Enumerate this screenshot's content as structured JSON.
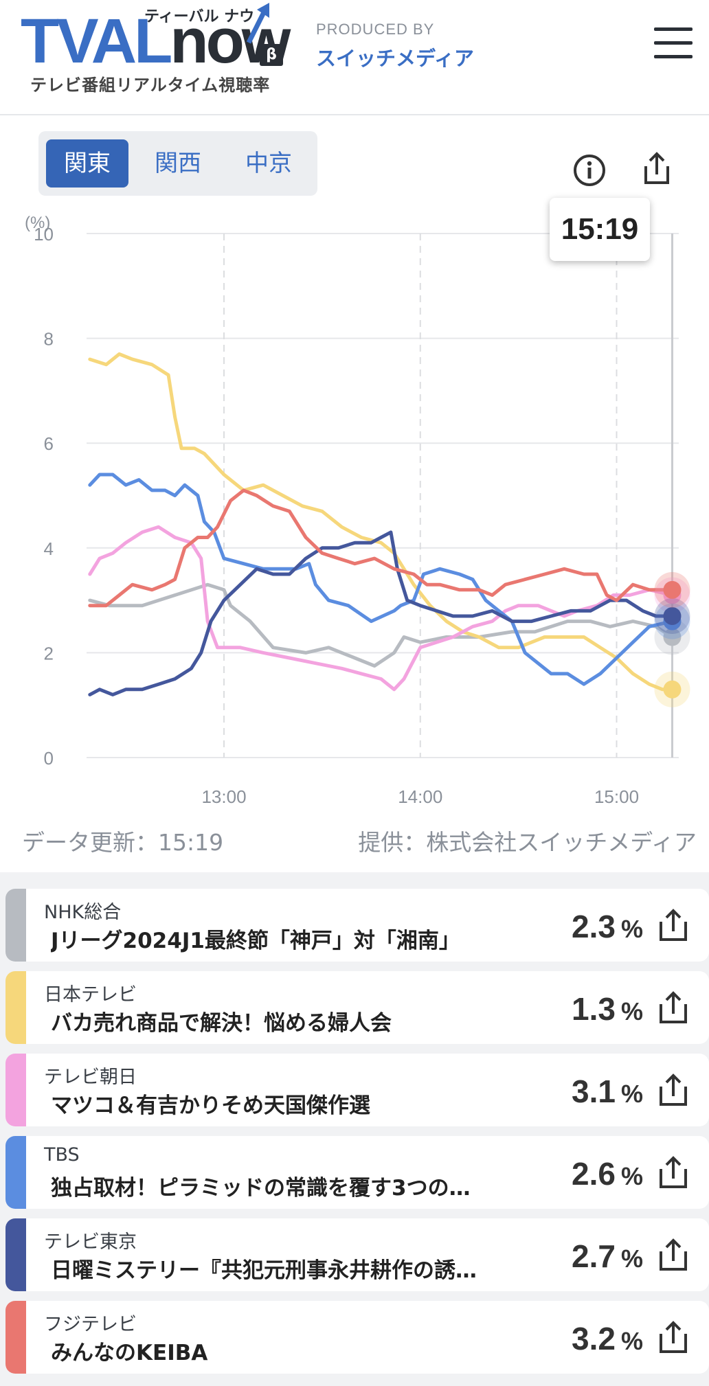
{
  "header": {
    "logo_main": "TVAL",
    "logo_now": "now",
    "logo_kana": "ティーバル ナウ",
    "logo_beta": "β",
    "logo_sub": "テレビ番組リアルタイム視聴率",
    "produced_by": "PRODUCED BY",
    "producer": "スイッチメディア"
  },
  "region_tabs": [
    {
      "label": "関東",
      "active": true
    },
    {
      "label": "関西",
      "active": false
    },
    {
      "label": "中京",
      "active": false
    }
  ],
  "icons": {
    "info": "info-icon",
    "share": "share-icon",
    "menu": "hamburger-menu-icon"
  },
  "current_time": "15:19",
  "footer": {
    "updated": "データ更新：15:19",
    "provider": "提供：株式会社スイッチメディア"
  },
  "chart_data": {
    "type": "line",
    "y_unit": "(%)",
    "ylim": [
      0,
      10
    ],
    "y_ticks": [
      "0",
      "2",
      "4",
      "6",
      "8",
      "10"
    ],
    "x_ticks": [
      "13:00",
      "14:00",
      "15:00"
    ],
    "x_tick_values": [
      780,
      840,
      900
    ],
    "xlim": [
      738,
      919
    ],
    "grid": true,
    "series": [
      {
        "color": "#b7bbc1",
        "points": [
          [
            739,
            3.0
          ],
          [
            745,
            2.9
          ],
          [
            755,
            2.9
          ],
          [
            765,
            3.1
          ],
          [
            775,
            3.3
          ],
          [
            780,
            3.2
          ],
          [
            782,
            2.9
          ],
          [
            788,
            2.6
          ],
          [
            795,
            2.1
          ],
          [
            805,
            2.0
          ],
          [
            812,
            2.1
          ],
          [
            820,
            1.9
          ],
          [
            826,
            1.75
          ],
          [
            832,
            2.0
          ],
          [
            835,
            2.3
          ],
          [
            840,
            2.2
          ],
          [
            848,
            2.3
          ],
          [
            858,
            2.3
          ],
          [
            868,
            2.4
          ],
          [
            875,
            2.4
          ],
          [
            885,
            2.6
          ],
          [
            892,
            2.6
          ],
          [
            898,
            2.5
          ],
          [
            905,
            2.6
          ],
          [
            912,
            2.5
          ],
          [
            917,
            2.3
          ]
        ]
      },
      {
        "color": "#f6d77b",
        "points": [
          [
            739,
            7.6
          ],
          [
            744,
            7.5
          ],
          [
            748,
            7.7
          ],
          [
            752,
            7.6
          ],
          [
            758,
            7.5
          ],
          [
            763,
            7.3
          ],
          [
            765,
            6.5
          ],
          [
            767,
            5.9
          ],
          [
            771,
            5.9
          ],
          [
            774,
            5.8
          ],
          [
            780,
            5.4
          ],
          [
            786,
            5.1
          ],
          [
            792,
            5.2
          ],
          [
            798,
            5.0
          ],
          [
            804,
            4.8
          ],
          [
            810,
            4.7
          ],
          [
            816,
            4.4
          ],
          [
            822,
            4.2
          ],
          [
            828,
            4.1
          ],
          [
            832,
            3.9
          ],
          [
            835,
            3.6
          ],
          [
            838,
            3.3
          ],
          [
            843,
            2.9
          ],
          [
            848,
            2.6
          ],
          [
            853,
            2.4
          ],
          [
            858,
            2.3
          ],
          [
            864,
            2.1
          ],
          [
            870,
            2.1
          ],
          [
            878,
            2.3
          ],
          [
            885,
            2.3
          ],
          [
            890,
            2.3
          ],
          [
            895,
            2.1
          ],
          [
            900,
            1.9
          ],
          [
            905,
            1.6
          ],
          [
            910,
            1.4
          ],
          [
            914,
            1.3
          ],
          [
            917,
            1.3
          ]
        ]
      },
      {
        "color": "#f3a3df",
        "points": [
          [
            739,
            3.5
          ],
          [
            742,
            3.8
          ],
          [
            746,
            3.9
          ],
          [
            750,
            4.1
          ],
          [
            755,
            4.3
          ],
          [
            760,
            4.4
          ],
          [
            765,
            4.2
          ],
          [
            770,
            4.1
          ],
          [
            773,
            3.8
          ],
          [
            775,
            2.6
          ],
          [
            778,
            2.1
          ],
          [
            785,
            2.1
          ],
          [
            792,
            2.0
          ],
          [
            800,
            1.9
          ],
          [
            808,
            1.8
          ],
          [
            816,
            1.7
          ],
          [
            822,
            1.6
          ],
          [
            828,
            1.5
          ],
          [
            832,
            1.3
          ],
          [
            835,
            1.5
          ],
          [
            840,
            2.1
          ],
          [
            845,
            2.2
          ],
          [
            850,
            2.3
          ],
          [
            856,
            2.5
          ],
          [
            862,
            2.6
          ],
          [
            866,
            2.8
          ],
          [
            870,
            2.9
          ],
          [
            876,
            2.9
          ],
          [
            880,
            2.8
          ],
          [
            884,
            2.7
          ],
          [
            888,
            2.8
          ],
          [
            894,
            2.9
          ],
          [
            899,
            3.1
          ],
          [
            904,
            3.1
          ],
          [
            910,
            3.2
          ],
          [
            917,
            3.1
          ]
        ]
      },
      {
        "color": "#5b8de0",
        "points": [
          [
            739,
            5.2
          ],
          [
            742,
            5.4
          ],
          [
            746,
            5.4
          ],
          [
            750,
            5.2
          ],
          [
            754,
            5.3
          ],
          [
            758,
            5.1
          ],
          [
            762,
            5.1
          ],
          [
            765,
            5.0
          ],
          [
            768,
            5.2
          ],
          [
            772,
            5.0
          ],
          [
            774,
            4.5
          ],
          [
            777,
            4.3
          ],
          [
            780,
            3.8
          ],
          [
            786,
            3.7
          ],
          [
            792,
            3.6
          ],
          [
            797,
            3.6
          ],
          [
            802,
            3.6
          ],
          [
            806,
            3.7
          ],
          [
            808,
            3.3
          ],
          [
            812,
            3.0
          ],
          [
            818,
            2.9
          ],
          [
            825,
            2.6
          ],
          [
            832,
            2.8
          ],
          [
            834,
            2.9
          ],
          [
            838,
            3.0
          ],
          [
            841,
            3.5
          ],
          [
            846,
            3.6
          ],
          [
            852,
            3.5
          ],
          [
            856,
            3.4
          ],
          [
            860,
            3.0
          ],
          [
            864,
            2.8
          ],
          [
            868,
            2.6
          ],
          [
            872,
            2.0
          ],
          [
            876,
            1.8
          ],
          [
            880,
            1.6
          ],
          [
            885,
            1.6
          ],
          [
            890,
            1.4
          ],
          [
            895,
            1.6
          ],
          [
            900,
            1.9
          ],
          [
            905,
            2.2
          ],
          [
            910,
            2.5
          ],
          [
            917,
            2.6
          ]
        ]
      },
      {
        "color": "#44579c",
        "points": [
          [
            739,
            1.2
          ],
          [
            742,
            1.3
          ],
          [
            746,
            1.2
          ],
          [
            750,
            1.3
          ],
          [
            755,
            1.3
          ],
          [
            760,
            1.4
          ],
          [
            765,
            1.5
          ],
          [
            770,
            1.7
          ],
          [
            773,
            2.0
          ],
          [
            776,
            2.6
          ],
          [
            780,
            3.0
          ],
          [
            785,
            3.3
          ],
          [
            790,
            3.6
          ],
          [
            795,
            3.5
          ],
          [
            800,
            3.5
          ],
          [
            805,
            3.8
          ],
          [
            810,
            4.0
          ],
          [
            815,
            4.0
          ],
          [
            820,
            4.1
          ],
          [
            825,
            4.1
          ],
          [
            828,
            4.2
          ],
          [
            831,
            4.3
          ],
          [
            833,
            3.6
          ],
          [
            836,
            3.0
          ],
          [
            840,
            2.9
          ],
          [
            845,
            2.8
          ],
          [
            850,
            2.7
          ],
          [
            856,
            2.7
          ],
          [
            862,
            2.8
          ],
          [
            868,
            2.6
          ],
          [
            874,
            2.6
          ],
          [
            880,
            2.7
          ],
          [
            886,
            2.8
          ],
          [
            892,
            2.8
          ],
          [
            898,
            3.0
          ],
          [
            903,
            3.0
          ],
          [
            908,
            2.8
          ],
          [
            912,
            2.7
          ],
          [
            917,
            2.7
          ]
        ]
      },
      {
        "color": "#e97770",
        "points": [
          [
            739,
            2.9
          ],
          [
            744,
            2.9
          ],
          [
            748,
            3.1
          ],
          [
            752,
            3.3
          ],
          [
            758,
            3.2
          ],
          [
            762,
            3.3
          ],
          [
            765,
            3.4
          ],
          [
            768,
            4.0
          ],
          [
            772,
            4.2
          ],
          [
            775,
            4.2
          ],
          [
            778,
            4.4
          ],
          [
            782,
            4.9
          ],
          [
            786,
            5.1
          ],
          [
            790,
            5.0
          ],
          [
            795,
            4.8
          ],
          [
            800,
            4.7
          ],
          [
            805,
            4.2
          ],
          [
            810,
            3.9
          ],
          [
            815,
            3.8
          ],
          [
            820,
            3.7
          ],
          [
            826,
            3.8
          ],
          [
            832,
            3.6
          ],
          [
            838,
            3.5
          ],
          [
            842,
            3.3
          ],
          [
            846,
            3.3
          ],
          [
            852,
            3.2
          ],
          [
            858,
            3.2
          ],
          [
            862,
            3.1
          ],
          [
            866,
            3.3
          ],
          [
            872,
            3.4
          ],
          [
            878,
            3.5
          ],
          [
            884,
            3.6
          ],
          [
            890,
            3.5
          ],
          [
            894,
            3.5
          ],
          [
            897,
            3.1
          ],
          [
            900,
            3.0
          ],
          [
            905,
            3.3
          ],
          [
            910,
            3.2
          ],
          [
            917,
            3.2
          ]
        ]
      }
    ]
  },
  "programs": [
    {
      "channel": "NHK総合",
      "title": "Jリーグ2024J1最終節「神戸」対「湘南」",
      "rating": "2.3",
      "unit": "%",
      "color": "#b7bbc1"
    },
    {
      "channel": "日本テレビ",
      "title": "バカ売れ商品で解決！悩める婦人会",
      "rating": "1.3",
      "unit": "%",
      "color": "#f6d77b"
    },
    {
      "channel": "テレビ朝日",
      "title": "マツコ＆有吉かりそめ天国傑作選",
      "rating": "3.1",
      "unit": "%",
      "color": "#f3a3df"
    },
    {
      "channel": "TBS",
      "title": "独占取材！ピラミッドの常識を覆す3つの…",
      "rating": "2.6",
      "unit": "%",
      "color": "#5b8de0"
    },
    {
      "channel": "テレビ東京",
      "title": "日曜ミステリー『共犯元刑事永井耕作の誘…",
      "rating": "2.7",
      "unit": "%",
      "color": "#44579c"
    },
    {
      "channel": "フジテレビ",
      "title": "みんなのKEIBA",
      "rating": "3.2",
      "unit": "%",
      "color": "#e97770"
    }
  ]
}
